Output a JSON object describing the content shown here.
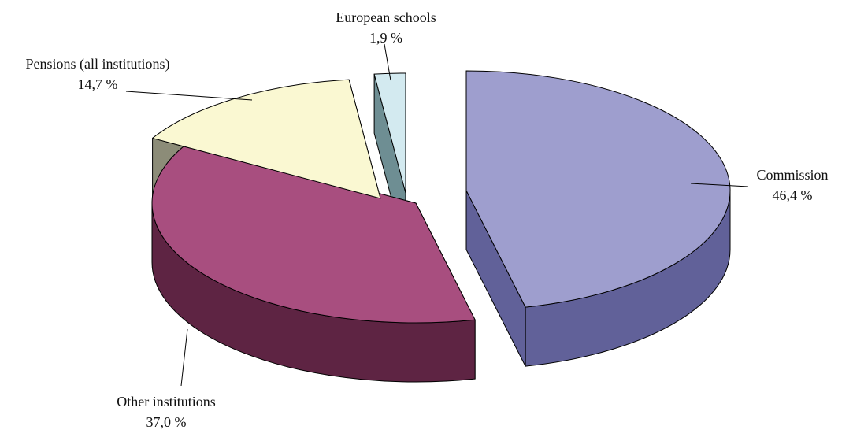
{
  "chart_data": {
    "type": "pie",
    "title": "",
    "style": "3d-exploded",
    "slices": [
      {
        "label": "Commission",
        "value": 46.4,
        "value_text": "46,4 %",
        "top_color": "#9E9ECE",
        "side_color": "#616199"
      },
      {
        "label": "Other institutions",
        "value": 37.0,
        "value_text": "37,0 %",
        "top_color": "#A84E7F",
        "side_color": "#5E2443"
      },
      {
        "label": "Pensions (all institutions)",
        "value": 14.7,
        "value_text": "14,7 %",
        "top_color": "#FAF8D2",
        "side_color": "#8C8C78"
      },
      {
        "label": "European schools",
        "value": 1.9,
        "value_text": "1,9 %",
        "top_color": "#D3EAF0",
        "side_color": "#6E8E93"
      }
    ]
  }
}
